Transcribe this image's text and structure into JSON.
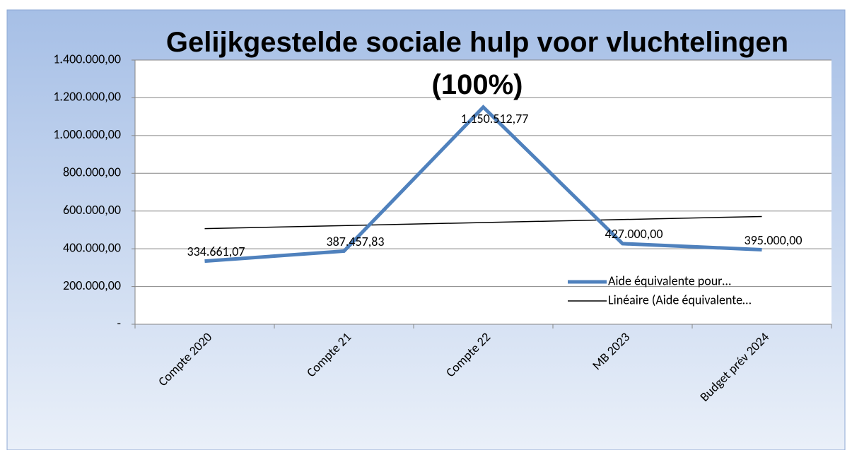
{
  "chart_data": {
    "type": "line",
    "title": "Gelijkgestelde sociale hulp voor vluchtelingen (100%)",
    "categories": [
      "Compte 2020",
      "Compte 21",
      "Compte 22",
      "MB 2023",
      "Budget prév 2024"
    ],
    "series": [
      {
        "name": "Aide équivalente pour…",
        "color": "#4f81bd",
        "values": [
          334661.07,
          387457.83,
          1150512.77,
          427000,
          395000
        ],
        "value_labels": [
          "334.661,07",
          "387.457,83",
          "1.150.512,77",
          "427.000,00",
          "395.000,00"
        ]
      }
    ],
    "trendline": {
      "type": "linear",
      "name": "Linéaire (Aide équivalente…",
      "color": "#000000"
    },
    "ylim": [
      0,
      1400000
    ],
    "yticks": [
      {
        "value": 0,
        "label": "-"
      },
      {
        "value": 200000,
        "label": "200.000,00"
      },
      {
        "value": 400000,
        "label": "400.000,00"
      },
      {
        "value": 600000,
        "label": "600.000,00"
      },
      {
        "value": 800000,
        "label": "800.000,00"
      },
      {
        "value": 1000000,
        "label": "1.000.000,00"
      },
      {
        "value": 1200000,
        "label": "1.200.000,00"
      },
      {
        "value": 1400000,
        "label": "1.400.000,00"
      }
    ],
    "grid": true,
    "legend": "right"
  }
}
